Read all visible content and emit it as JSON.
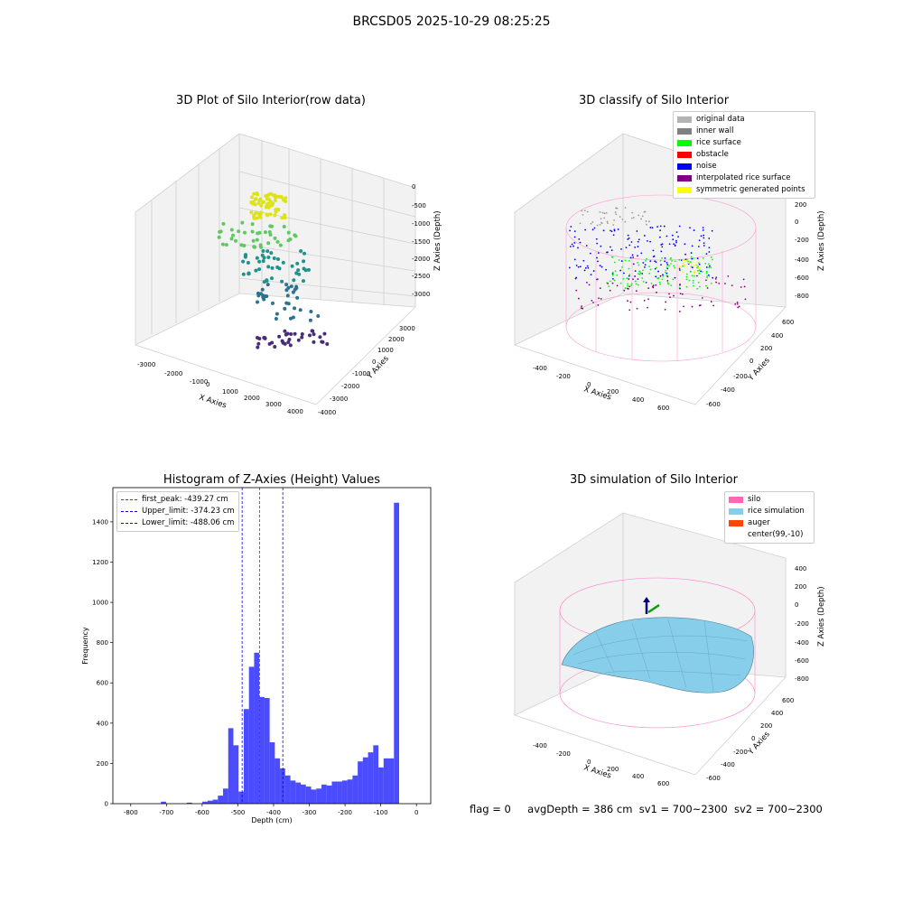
{
  "figure": {
    "suptitle": "BRCSD05 2025-10-29 08:25:25",
    "footer": {
      "flag": "flag = 0",
      "avg_depth": "avgDepth = 386 cm",
      "sv1": "sv1 = 700~2300",
      "sv2": "sv2 = 700~2300"
    }
  },
  "panels": {
    "raw": {
      "title": "3D Plot of Silo Interior(row data)",
      "xlabel": "X Axies",
      "ylabel": "Y Axies",
      "zlabel": "Z Axies (Depth)",
      "xticks": [
        "-3000",
        "-2000",
        "-1000",
        "0",
        "1000",
        "2000",
        "3000",
        "4000"
      ],
      "yticks": [
        "-4000",
        "-3000",
        "-2000",
        "-1000",
        "0",
        "1000",
        "2000",
        "3000"
      ],
      "zticks": [
        "0",
        "-500",
        "-1000",
        "-1500",
        "-2000",
        "-2500",
        "-3000"
      ]
    },
    "classify": {
      "title": "3D classify of Silo Interior",
      "xlabel": "X Axies",
      "ylabel": "Y Axies",
      "zlabel": "Z Axies (Depth)",
      "xticks": [
        "-400",
        "-200",
        "0",
        "200",
        "400",
        "600"
      ],
      "yticks": [
        "-600",
        "-400",
        "-200",
        "0",
        "200",
        "400",
        "600"
      ],
      "zticks": [
        "200",
        "0",
        "-200",
        "-400",
        "-600",
        "-800"
      ],
      "legend": [
        {
          "label": "original data",
          "color": "#b3b3b3"
        },
        {
          "label": "inner wall",
          "color": "#808080"
        },
        {
          "label": "rice surface",
          "color": "#00ff00"
        },
        {
          "label": "obstacle",
          "color": "#ff0000"
        },
        {
          "label": "noise",
          "color": "#0000ff"
        },
        {
          "label": "interpolated rice surface",
          "color": "#800080"
        },
        {
          "label": "symmetric generated points",
          "color": "#ffff00"
        }
      ]
    },
    "simulation": {
      "title": "3D simulation of Silo Interior",
      "xlabel": "X Axies",
      "ylabel": "Y Axies",
      "zlabel": "Z Axies (Depth)",
      "xticks": [
        "-400",
        "-200",
        "0",
        "200",
        "400",
        "600"
      ],
      "yticks": [
        "-600",
        "-400",
        "-200",
        "0",
        "200",
        "400",
        "600"
      ],
      "zticks": [
        "400",
        "200",
        "0",
        "-200",
        "-400",
        "-600",
        "-800"
      ],
      "legend": [
        {
          "label": "silo",
          "color": "#ff69b4"
        },
        {
          "label": "rice simulation",
          "color": "#87ceeb"
        },
        {
          "label": "auger",
          "color": "#ff4500"
        },
        {
          "label": "center(99,-10)",
          "color": "#ffffff"
        }
      ]
    }
  },
  "chart_data": {
    "type": "bar",
    "title": "Histogram of Z-Axies (Height) Values",
    "xlabel": "Depth (cm)",
    "ylabel": "Frequency",
    "xlim": [
      -850,
      40
    ],
    "ylim": [
      0,
      1570
    ],
    "xticks": [
      -800,
      -700,
      -600,
      -500,
      -400,
      -300,
      -200,
      -100,
      0
    ],
    "yticks": [
      0,
      200,
      400,
      600,
      800,
      1000,
      1200,
      1400
    ],
    "bar_color": "#0000ff",
    "bin_width": 14.5,
    "bin_lefts": [
      -730,
      -715.5,
      -701,
      -686.5,
      -672,
      -657.5,
      -643,
      -628.5,
      -614,
      -599.5,
      -585,
      -570.5,
      -556,
      -541.5,
      -527,
      -512.5,
      -498,
      -483.5,
      -469,
      -454.5,
      -440,
      -425.5,
      -411,
      -396.5,
      -382,
      -367.5,
      -353,
      -338.5,
      -324,
      -309.5,
      -295,
      -280.5,
      -266,
      -251.5,
      -237,
      -222.5,
      -208,
      -193.5,
      -179,
      -164.5,
      -150,
      -135.5,
      -121,
      -106.5,
      -92,
      -77.5,
      -63,
      -48.5,
      -34,
      -19.5,
      -5
    ],
    "counts": [
      0,
      10,
      0,
      0,
      0,
      0,
      5,
      0,
      0,
      10,
      15,
      20,
      40,
      75,
      375,
      290,
      60,
      470,
      680,
      750,
      530,
      525,
      305,
      225,
      175,
      140,
      115,
      105,
      95,
      85,
      70,
      75,
      95,
      90,
      110,
      110,
      115,
      120,
      140,
      210,
      230,
      255,
      290,
      180,
      225,
      225,
      1495,
      0,
      0,
      0,
      0
    ],
    "reference_lines": [
      {
        "label": "first_peak: -439.27 cm",
        "x": -439.27,
        "color": "#ff0000"
      },
      {
        "label": "Upper_limit: -374.23 cm",
        "x": -374.23,
        "color": "#0000ff"
      },
      {
        "label": "Lower_limit: -488.06 cm",
        "x": -488.06,
        "color": "#0000ff"
      }
    ],
    "legend_position": "upper-left"
  }
}
